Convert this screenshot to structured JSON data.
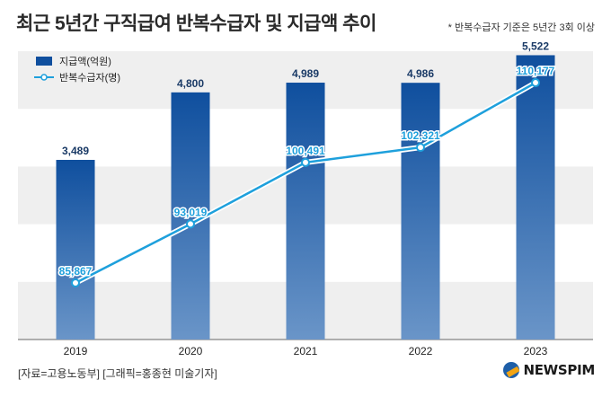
{
  "header": {
    "title": "최근 5년간 구직급여 반복수급자 및 지급액 추이",
    "note": "* 반복수급자 기준은 5년간 3회 이상"
  },
  "footer": {
    "source": "[자료=고용노동부] [그래픽=홍종현 미술기자]",
    "logo_text": "NEWSPIM"
  },
  "chart_data": {
    "type": "bar",
    "categories": [
      "2019",
      "2020",
      "2021",
      "2022",
      "2023"
    ],
    "series": [
      {
        "name": "지급액(억원)",
        "type": "bar",
        "values": [
          3489,
          4800,
          4989,
          4986,
          5522
        ],
        "labels": [
          "3,489",
          "4,800",
          "4,989",
          "4,986",
          "5,522"
        ],
        "color": "#0f4f9e"
      },
      {
        "name": "반복수급자(명)",
        "type": "line",
        "values": [
          85867,
          93019,
          100491,
          102321,
          110177
        ],
        "labels": [
          "85,867",
          "93,019",
          "100,491",
          "102,321",
          "110,177"
        ],
        "color": "#1ea0dc"
      }
    ],
    "bar_axis_range": [
      0,
      5600
    ],
    "line_axis_range": [
      79000,
      114000
    ],
    "legend_position": "top-left",
    "grid": "alternating-bands",
    "colors": {
      "bar_top": "#0f4f9e",
      "bar_bottom": "#6a95c8",
      "line": "#1ea0dc",
      "line_label": "#1ea0dc",
      "band": "#efefef"
    }
  }
}
